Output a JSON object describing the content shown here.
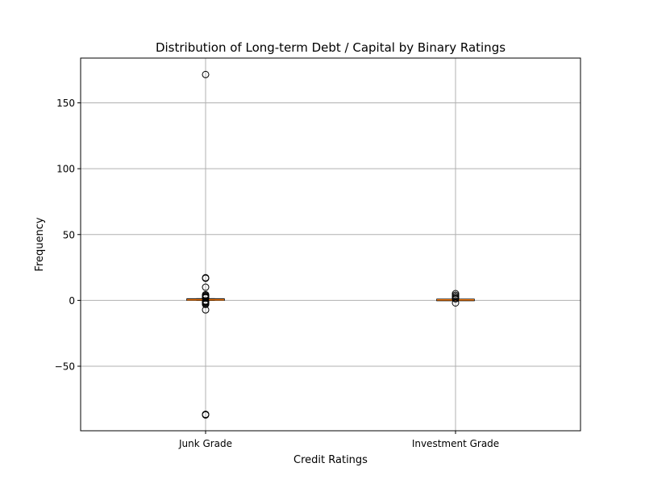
{
  "chart_data": {
    "type": "box",
    "title": "Distribution of Long-term Debt / Capital by Binary Ratings",
    "xlabel": "Credit Ratings",
    "ylabel": "Frequency",
    "categories": [
      "Junk Grade",
      "Investment Grade"
    ],
    "ylim": [
      -99,
      184
    ],
    "yticks": [
      -50,
      0,
      50,
      100,
      150
    ],
    "ytick_labels": [
      "−50",
      "0",
      "50",
      "100",
      "150"
    ],
    "grid": true,
    "boxes": [
      {
        "category": "Junk Grade",
        "whisker_low": 0.0,
        "q1": 0.3,
        "median": 0.5,
        "q3": 0.8,
        "whisker_high": 1.2,
        "outliers": [
          171.5,
          17.2,
          16.8,
          10.0,
          4.3,
          3.6,
          3.0,
          2.4,
          1.9,
          -0.5,
          -1.0,
          -1.6,
          -2.3,
          -3.0,
          -7.2,
          -86.5,
          -87.0
        ]
      },
      {
        "category": "Investment Grade",
        "whisker_low": 0.0,
        "q1": 0.2,
        "median": 0.35,
        "q3": 0.5,
        "whisker_high": 0.8,
        "outliers": [
          5.1,
          3.9,
          2.9,
          2.0,
          1.2,
          -1.9
        ]
      }
    ],
    "colors": {
      "median": "#ff7f0e",
      "box": "#000000",
      "grid": "#b0b0b0",
      "outlier": "#000000"
    }
  }
}
